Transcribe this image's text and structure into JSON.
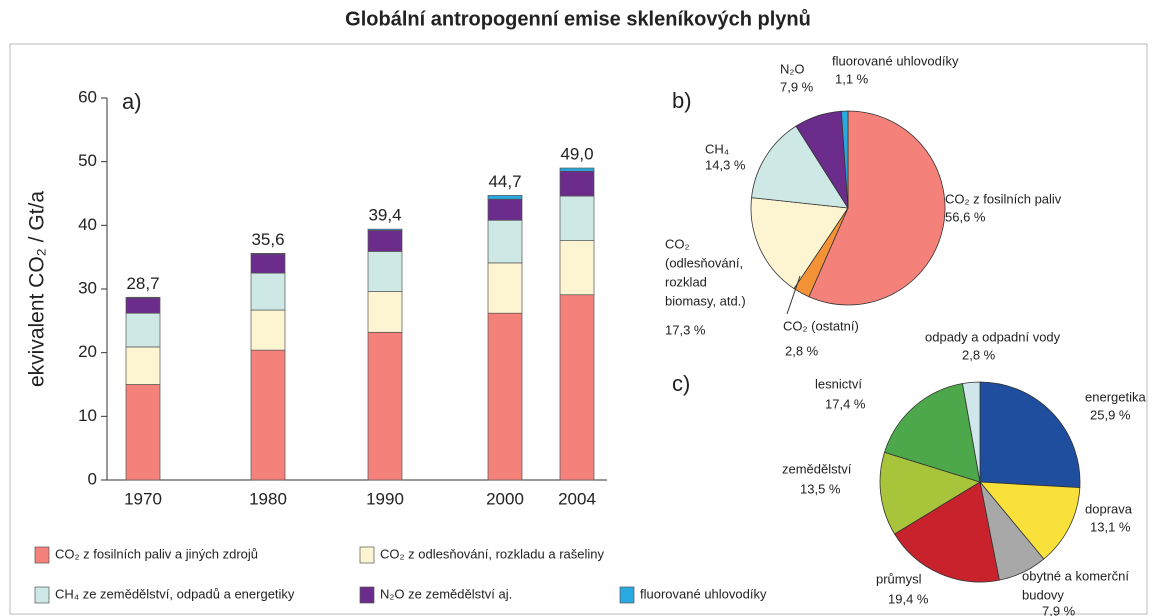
{
  "title": "Globální antropogenní emise skleníkových plynů",
  "chart_data": [
    {
      "type": "bar",
      "stacked": true,
      "panel": "a)",
      "ylabel": "ekvivalent CO₂ / Gt/a",
      "categories": [
        "1970",
        "1980",
        "1990",
        "2000",
        "2004"
      ],
      "series": [
        {
          "name": "CO₂ z fosilních paliv a jiných zdrojů",
          "color": "#f4817a",
          "values": [
            15.0,
            20.4,
            23.2,
            26.2,
            29.1
          ]
        },
        {
          "name": "CO₂ z odlesňování, rozkladu a rašeliny",
          "color": "#fdf5d2",
          "values": [
            5.9,
            6.3,
            6.4,
            7.9,
            8.5
          ]
        },
        {
          "name": "CH₄ ze zemědělství, odpadů a energetiky",
          "color": "#cde8e5",
          "values": [
            5.3,
            5.8,
            6.3,
            6.7,
            7.0
          ]
        },
        {
          "name": "N₂O ze zemědělství aj.",
          "color": "#6b2c8c",
          "values": [
            2.4,
            3.0,
            3.3,
            3.3,
            3.9
          ]
        },
        {
          "name": "fluorované uhlovodíky",
          "color": "#29a9e0",
          "values": [
            0.1,
            0.1,
            0.2,
            0.6,
            0.5
          ]
        }
      ],
      "totals": [
        28.7,
        35.6,
        39.4,
        44.7,
        49.0
      ],
      "total_labels": [
        "28,7",
        "35,6",
        "39,4",
        "44,7",
        "49,0"
      ],
      "ylim": [
        0,
        60
      ],
      "yticks": [
        0,
        10,
        20,
        30,
        40,
        50,
        60
      ]
    },
    {
      "type": "pie",
      "panel": "b)",
      "labels": [
        [
          "CO₂ z fosilních paliv"
        ],
        [
          "CO₂ (ostatní)"
        ],
        [
          "CO₂",
          "(odlesňování,",
          "rozklad",
          "biomasy, atd.)"
        ],
        [
          "CH₄"
        ],
        [
          "N₂O"
        ],
        [
          "fluorované uhlovodíky"
        ]
      ],
      "values": [
        56.6,
        2.8,
        17.3,
        14.3,
        7.9,
        1.1
      ],
      "value_labels": [
        "56,6 %",
        "2,8 %",
        "17,3 %",
        "14,3 %",
        "7,9 %",
        "1,1 %"
      ],
      "colors": [
        "#f4817a",
        "#f39237",
        "#fdf5d2",
        "#cde8e5",
        "#6b2c8c",
        "#29a9e0"
      ]
    },
    {
      "type": "pie",
      "panel": "c)",
      "labels": [
        [
          "energetika"
        ],
        [
          "doprava"
        ],
        [
          "obytné a komerční",
          "budovy"
        ],
        [
          "průmysl"
        ],
        [
          "zemědělství"
        ],
        [
          "lesnictví"
        ],
        [
          "odpady a odpadní vody"
        ]
      ],
      "values": [
        25.9,
        13.1,
        7.9,
        19.4,
        13.5,
        17.4,
        2.8
      ],
      "value_labels": [
        "25,9 %",
        "13,1 %",
        "7,9 %",
        "19,4 %",
        "13,5 %",
        "17,4 %",
        "2,8 %"
      ],
      "colors": [
        "#1f4e9e",
        "#f9e03a",
        "#a8a8a8",
        "#c8232d",
        "#a8c43a",
        "#4ca84a",
        "#cfe6ea"
      ]
    }
  ]
}
